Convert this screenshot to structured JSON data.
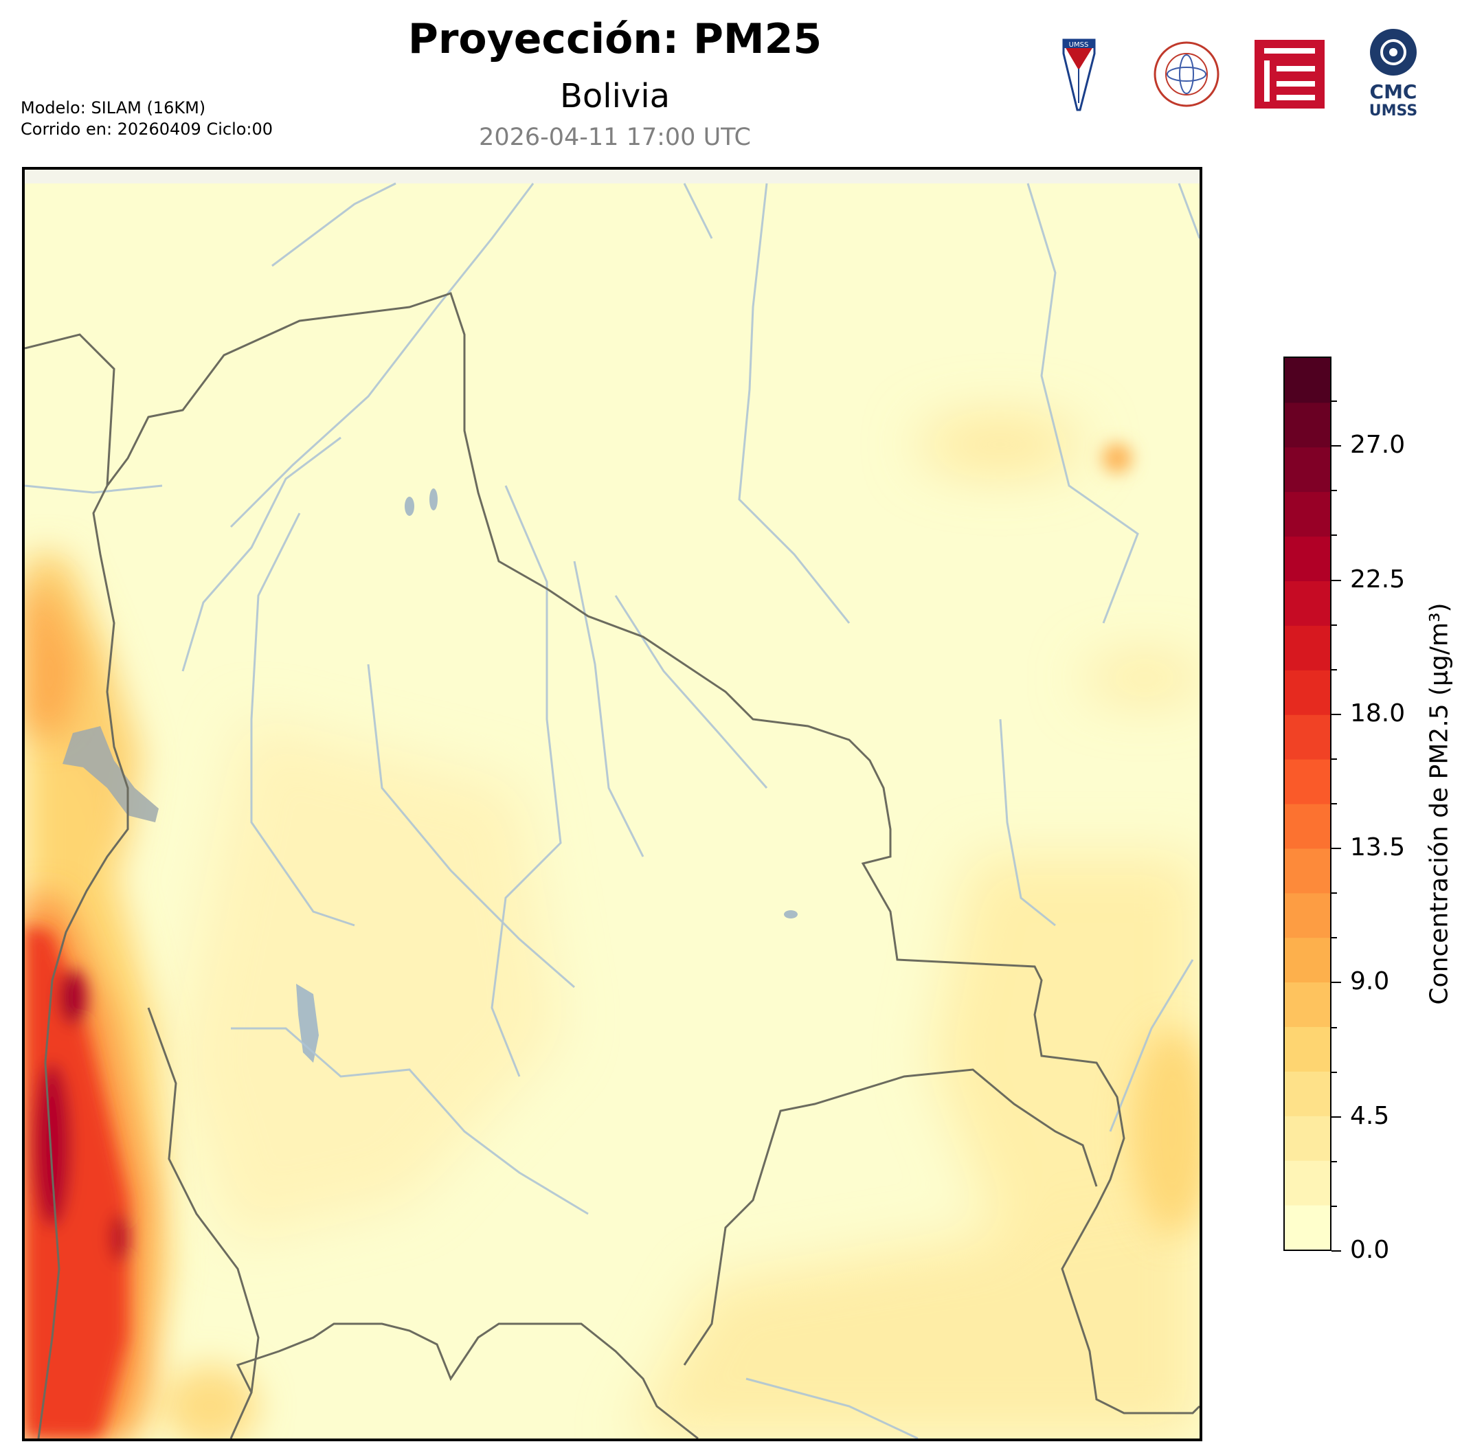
{
  "header": {
    "title": "Proyección: PM25",
    "subtitle": "Bolivia",
    "timestamp": "2026-04-11 17:00 UTC",
    "model_line": "Modelo: SILAM (16KM)",
    "run_line": "Corrido en: 20260409 Ciclo:00"
  },
  "logos": {
    "umss_text": "UMSS",
    "cmc_text": "CMC",
    "cmc_sub": "UMSS"
  },
  "colorbar": {
    "title": "Concentración de PM2.5 (µg/m³)",
    "min": 0,
    "max": 30,
    "ticks": [
      "0.0",
      "4.5",
      "9.0",
      "13.5",
      "18.0",
      "22.5",
      "27.0"
    ],
    "colors": [
      "#ffffcc",
      "#fff5b6",
      "#feeb9f",
      "#fee189",
      "#fed571",
      "#fec35e",
      "#fdb04c",
      "#fd9d43",
      "#fd8a3a",
      "#fc7230",
      "#fa5a29",
      "#f14225",
      "#e62a1f",
      "#d7181f",
      "#c60b24",
      "#b10026",
      "#980026",
      "#800026",
      "#6a0023",
      "#4f0020"
    ]
  },
  "map": {
    "region": "Bolivia",
    "background_color": "#fdfdcf",
    "border_color": "#6b6b5e",
    "river_color": "#aec4d4",
    "lake_color": "#a9bcc6"
  }
}
